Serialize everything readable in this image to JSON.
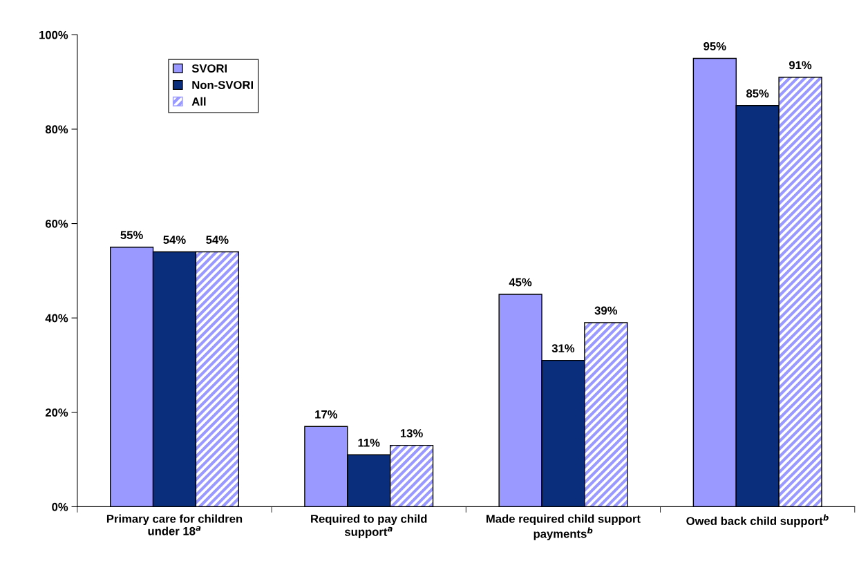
{
  "chart_data": {
    "type": "bar",
    "categories": [
      "Primary care for children\nunder 18$^{a}$",
      "Required to pay child\nsupport$^{a}$",
      "Made required child support\npayments$^{b}$",
      "Owed back child support$^{b}$"
    ],
    "series": [
      {
        "name": "SVORI",
        "color": "#9999ff",
        "values": [
          55,
          17,
          45,
          95
        ],
        "value_labels": [
          "55%",
          "17%",
          "45%",
          "95%"
        ]
      },
      {
        "name": "Non-SVORI",
        "color": "#0b2e7c",
        "values": [
          54,
          11,
          31,
          85
        ],
        "value_labels": [
          "54%",
          "11%",
          "31%",
          "85%"
        ]
      },
      {
        "name": "All",
        "color": "#9999ff",
        "values": [
          54,
          13,
          39,
          91
        ],
        "value_labels": [
          "54%",
          "13%",
          "39%",
          "91%"
        ]
      }
    ],
    "ylim": [
      0,
      100
    ],
    "yticks": [
      {
        "value": 0,
        "label": "0%"
      },
      {
        "value": 20,
        "label": "20%"
      },
      {
        "value": 40,
        "label": "40%"
      },
      {
        "value": 60,
        "label": "60%"
      },
      {
        "value": 80,
        "label": "80%"
      },
      {
        "value": 100,
        "label": "100%"
      }
    ],
    "grid": false,
    "legend": "top left"
  }
}
